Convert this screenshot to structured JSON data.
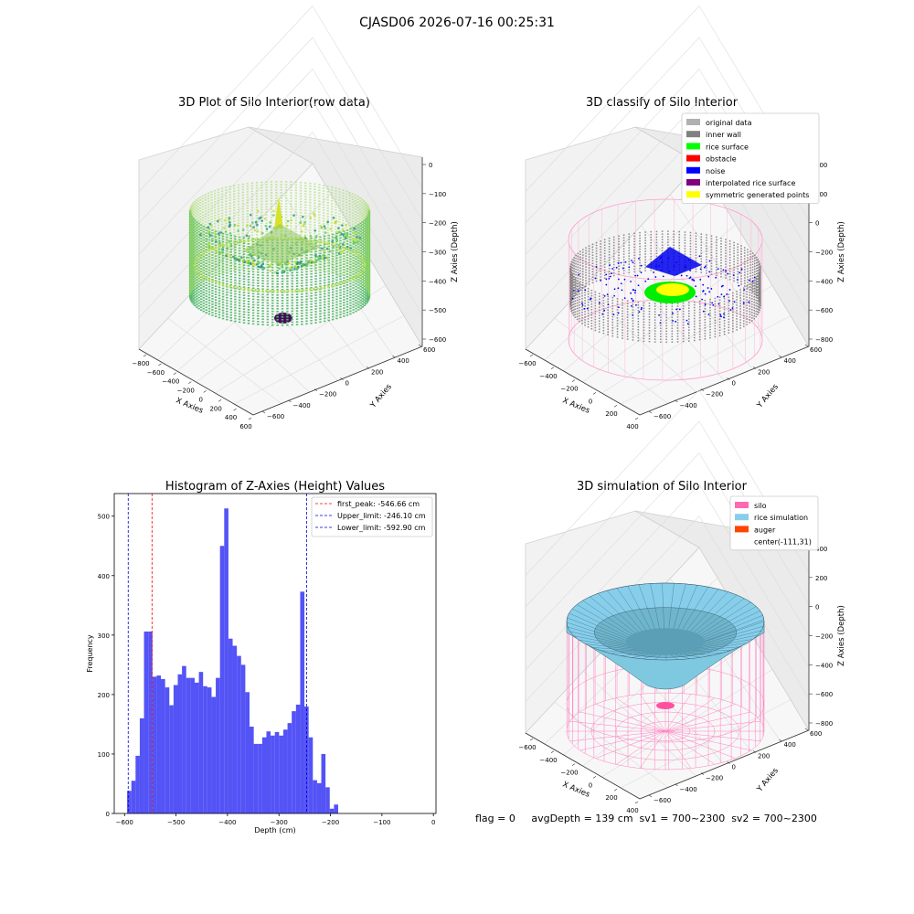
{
  "suptitle": "CJASD06 2026-07-16 00:25:31",
  "footer": "flag = 0     avgDepth = 139 cm  sv1 = 700~2300  sv2 = 700~2300",
  "chart_data": [
    {
      "type": "scatter",
      "title": "3D Plot of Silo Interior(row data)",
      "xlabel": "X Axies",
      "ylabel": "Y Axies",
      "zlabel": "Z Axies (Depth)",
      "x_ticks": [
        "−800",
        "−600",
        "−400",
        "−200",
        "0",
        "200",
        "400",
        "600"
      ],
      "y_ticks": [
        "−600",
        "−400",
        "−200",
        "0",
        "200",
        "400",
        "600"
      ],
      "z_ticks": [
        "0",
        "−100",
        "−200",
        "−300",
        "−400",
        "−500",
        "−600"
      ],
      "colormap": "viridis",
      "zlim": [
        -650,
        0
      ]
    },
    {
      "type": "scatter",
      "title": "3D classify of Silo Interior",
      "xlabel": "X Axies",
      "ylabel": "Y Axies",
      "zlabel": "Z Axies (Depth)",
      "x_ticks": [
        "−600",
        "−400",
        "−200",
        "0",
        "200",
        "400"
      ],
      "y_ticks": [
        "−600",
        "−400",
        "−200",
        "0",
        "200",
        "400",
        "600"
      ],
      "z_ticks": [
        "400",
        "200",
        "0",
        "−200",
        "−400",
        "−600",
        "−800"
      ],
      "legend_position": "top-right",
      "legend": [
        {
          "label": "original data",
          "color": "#b0b0b0"
        },
        {
          "label": "inner wall",
          "color": "#808080"
        },
        {
          "label": "rice surface",
          "color": "#00ff00"
        },
        {
          "label": "obstacle",
          "color": "#ff0000"
        },
        {
          "label": "noise",
          "color": "#0000ff"
        },
        {
          "label": "interpolated rice surface",
          "color": "#800080"
        },
        {
          "label": "symmetric generated points",
          "color": "#ffff00"
        }
      ]
    },
    {
      "type": "bar",
      "title": "Histogram of Z-Axies (Height) Values",
      "xlabel": "Depth (cm)",
      "ylabel": "Frequency",
      "bar_color": "#4a4af5",
      "xlim": [
        -620,
        5
      ],
      "ylim": [
        0,
        538
      ],
      "x_ticks": [
        -600,
        -500,
        -400,
        -300,
        -200,
        -100,
        0
      ],
      "x_tick_labels": [
        "−600",
        "−500",
        "−400",
        "−300",
        "−200",
        "−100",
        "0"
      ],
      "y_ticks": [
        0,
        100,
        200,
        300,
        400,
        500
      ],
      "bin_start": -595,
      "bin_width": 8.2,
      "values": [
        38,
        55,
        97,
        160,
        306,
        306,
        230,
        232,
        226,
        212,
        182,
        216,
        234,
        248,
        228,
        228,
        220,
        238,
        214,
        212,
        196,
        228,
        450,
        513,
        294,
        282,
        265,
        250,
        204,
        146,
        117,
        117,
        128,
        138,
        131,
        137,
        131,
        141,
        152,
        172,
        183,
        373,
        180,
        128,
        56,
        51,
        100,
        44,
        8,
        15
      ],
      "lines": [
        {
          "label": "first_peak: -546.66 cm",
          "x": -546.66,
          "color": "#ff0000"
        },
        {
          "label": "Upper_limit: -246.10 cm",
          "x": -246.1,
          "color": "#0000cc"
        },
        {
          "label": "Lower_limit: -592.90 cm",
          "x": -592.9,
          "color": "#0000cc"
        }
      ],
      "legend_position": "top-right"
    },
    {
      "type": "area",
      "title": "3D simulation of Silo Interior",
      "xlabel": "X Axies",
      "ylabel": "Y Axies",
      "zlabel": "Z Axies (Depth)",
      "x_ticks": [
        "−600",
        "−400",
        "−200",
        "0",
        "200",
        "400"
      ],
      "y_ticks": [
        "−600",
        "−400",
        "−200",
        "0",
        "200",
        "400",
        "600"
      ],
      "z_ticks": [
        "400",
        "200",
        "0",
        "−200",
        "−400",
        "−600",
        "−800"
      ],
      "legend_position": "top-right",
      "legend": [
        {
          "label": "silo",
          "color": "#ff69b4"
        },
        {
          "label": "rice simulation",
          "color": "#87ceeb"
        },
        {
          "label": "auger",
          "color": "#ff4500"
        },
        {
          "label": "center(-111,31)",
          "color": ""
        }
      ]
    }
  ]
}
